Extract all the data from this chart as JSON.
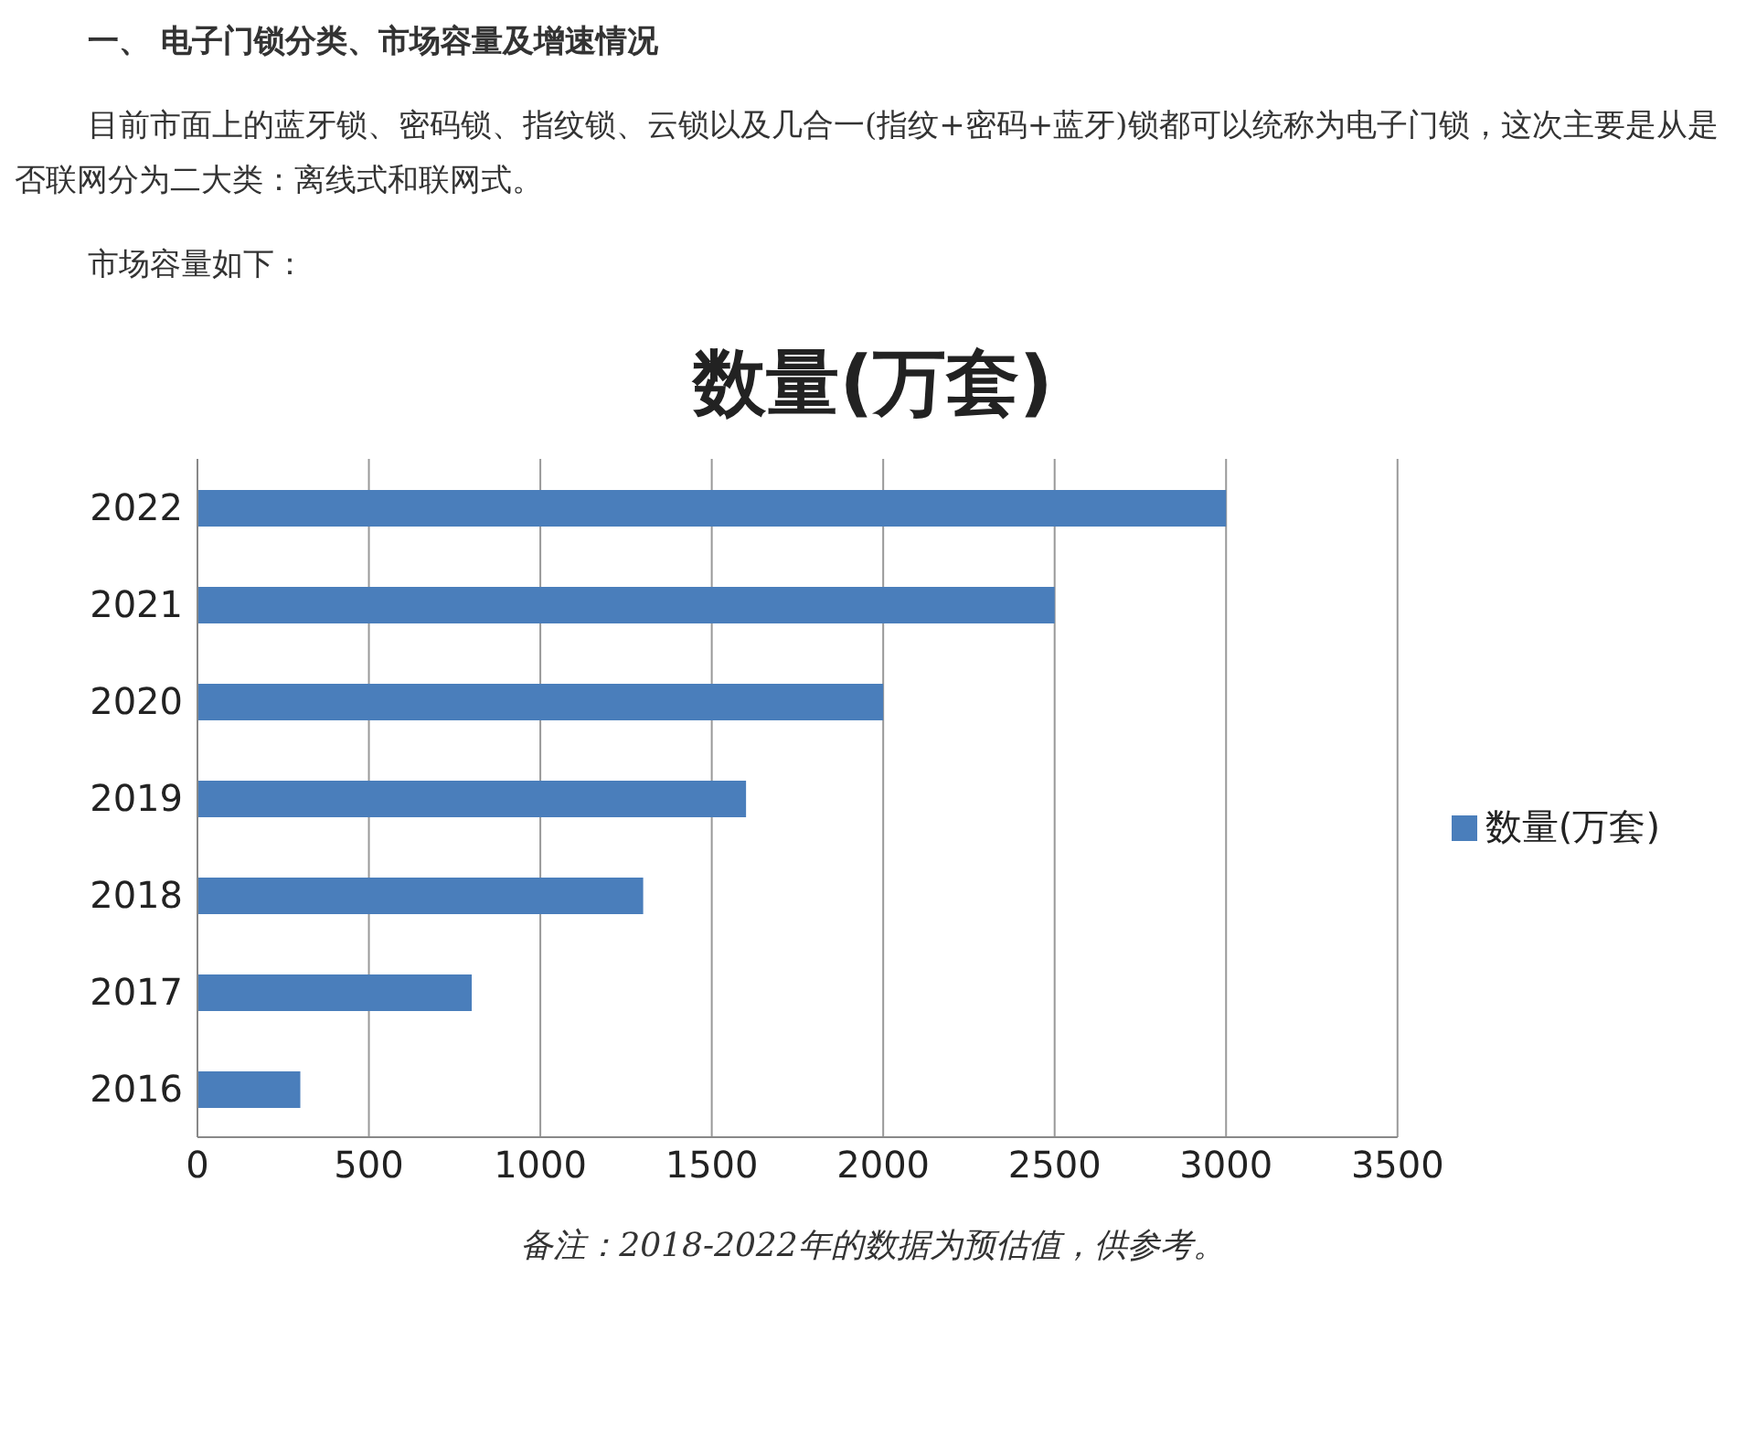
{
  "chart_data": {
    "type": "bar",
    "orientation": "horizontal",
    "title": "数量(万套)",
    "annotations": [
      "一、 电子门锁分类、市场容量及增速情况",
      "目前市面上的蓝牙锁、密码锁、指纹锁、云锁以及几合一(指纹+密码+蓝牙)锁都可以统称为电子门锁，这次主要是从是否联网分为二大类：离线式和联网式。",
      "市场容量如下：",
      "备注：2018-2022年的数据为预估值，供参考。"
    ],
    "categories": [
      "2022",
      "2021",
      "2020",
      "2019",
      "2018",
      "2017",
      "2016"
    ],
    "series": [
      {
        "name": "数量(万套)",
        "color": "#4a7ebb",
        "values": [
          3000,
          2500,
          2000,
          1600,
          1300,
          800,
          300
        ]
      }
    ],
    "xlim": [
      0,
      3500
    ],
    "xticks": [
      0,
      500,
      1000,
      1500,
      2000,
      2500,
      3000,
      3500
    ],
    "grid": "x",
    "legend": "right"
  }
}
